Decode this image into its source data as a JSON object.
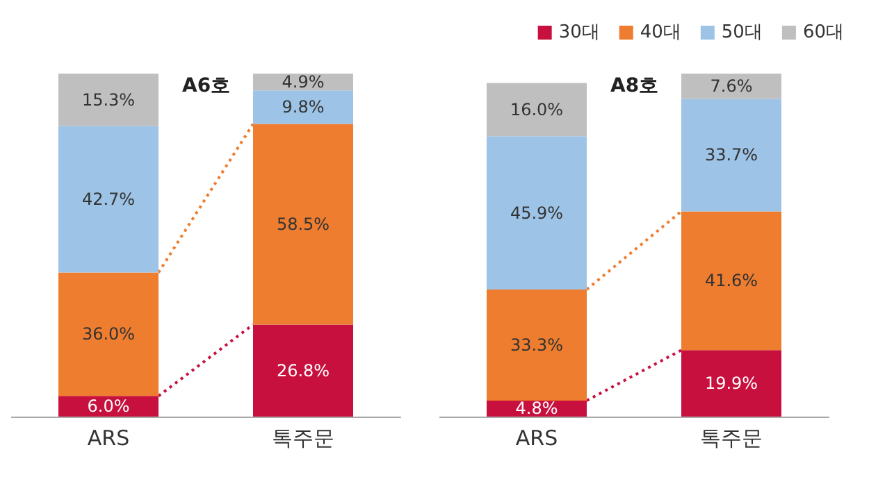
{
  "chart_data": [
    {
      "type": "bar",
      "title": "A6호",
      "stacked": true,
      "categories": [
        "ARS",
        "톡주문"
      ],
      "legend": false,
      "series": [
        {
          "color": "#c8103e",
          "values": [
            6.0,
            26.8
          ],
          "value_labels": [
            "6.0%",
            "26.8%"
          ]
        },
        {
          "color": "#ee7d2f",
          "values": [
            36.0,
            58.5
          ],
          "value_labels": [
            "36.0%",
            "58.5%"
          ]
        },
        {
          "color": "#9dc3e6",
          "values": [
            42.7,
            9.8
          ],
          "value_labels": [
            "42.7%",
            "9.8%"
          ]
        },
        {
          "color": "#bfbfbf",
          "values": [
            15.3,
            4.9
          ],
          "value_labels": [
            "15.3%",
            "4.9%"
          ]
        }
      ]
    },
    {
      "type": "bar",
      "title": "A8호",
      "stacked": true,
      "categories": [
        "ARS",
        "톡주문"
      ],
      "legend": "top right",
      "series": [
        {
          "name": "30대",
          "color": "#c8103e",
          "values": [
            4.8,
            19.9
          ],
          "value_labels": [
            "4.8%",
            "19.9%"
          ]
        },
        {
          "name": "40대",
          "color": "#ee7d2f",
          "values": [
            33.3,
            41.6
          ],
          "value_labels": [
            "33.3%",
            "41.6%"
          ]
        },
        {
          "name": "50대",
          "color": "#9dc3e6",
          "values": [
            45.9,
            33.7
          ],
          "value_labels": [
            "45.9%",
            "33.7%"
          ]
        },
        {
          "name": "60대",
          "color": "#bfbfbf",
          "values": [
            16.0,
            7.6
          ],
          "value_labels": [
            "16.0%",
            "7.6%"
          ]
        }
      ]
    }
  ]
}
